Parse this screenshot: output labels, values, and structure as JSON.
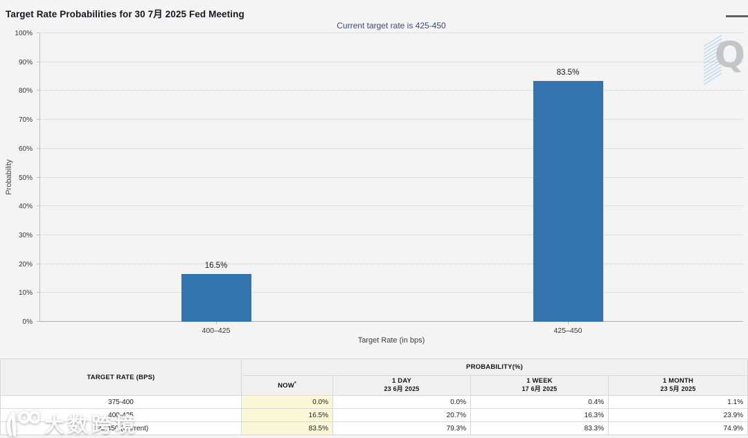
{
  "header": {
    "title": "Target Rate Probabilities for 30 7月 2025 Fed Meeting",
    "menu_icon": "hamburger"
  },
  "chart_data": {
    "type": "bar",
    "title": "Target Rate Probabilities for 30 7月 2025 Fed Meeting",
    "subtitle": "Current target rate is 425-450",
    "categories": [
      "400–425",
      "425–450"
    ],
    "values": [
      16.5,
      83.5
    ],
    "value_labels": [
      "16.5%",
      "83.5%"
    ],
    "xlabel": "Target Rate (in bps)",
    "ylabel": "Probability",
    "ylim": [
      0,
      100
    ],
    "ytick_step": 10,
    "ytick_suffix": "%",
    "grid": "horizontal-dotted",
    "legend": "none",
    "bar_color": "#3274ab"
  },
  "table": {
    "rate_header": "TARGET RATE (BPS)",
    "group_header": "PROBABILITY(%)",
    "columns": [
      {
        "label": "NOW",
        "sup": "*",
        "date": ""
      },
      {
        "label": "1 DAY",
        "sup": "",
        "date": "23 6月 2025"
      },
      {
        "label": "1 WEEK",
        "sup": "",
        "date": "17 6月 2025"
      },
      {
        "label": "1 MONTH",
        "sup": "",
        "date": "23 5月 2025"
      }
    ],
    "rows": [
      {
        "rate": "375-400",
        "values": [
          "0.0%",
          "0.0%",
          "0.4%",
          "1.1%"
        ]
      },
      {
        "rate": "400-425",
        "values": [
          "16.5%",
          "20.7%",
          "16.3%",
          "23.9%"
        ]
      },
      {
        "rate": "425-450 (Current)",
        "values": [
          "83.5%",
          "79.3%",
          "83.3%",
          "74.9%"
        ]
      }
    ],
    "now_column_color": "#faf8d7"
  },
  "watermarks": {
    "chart_logo_letter": "Q",
    "site_name": "大数跨境"
  }
}
